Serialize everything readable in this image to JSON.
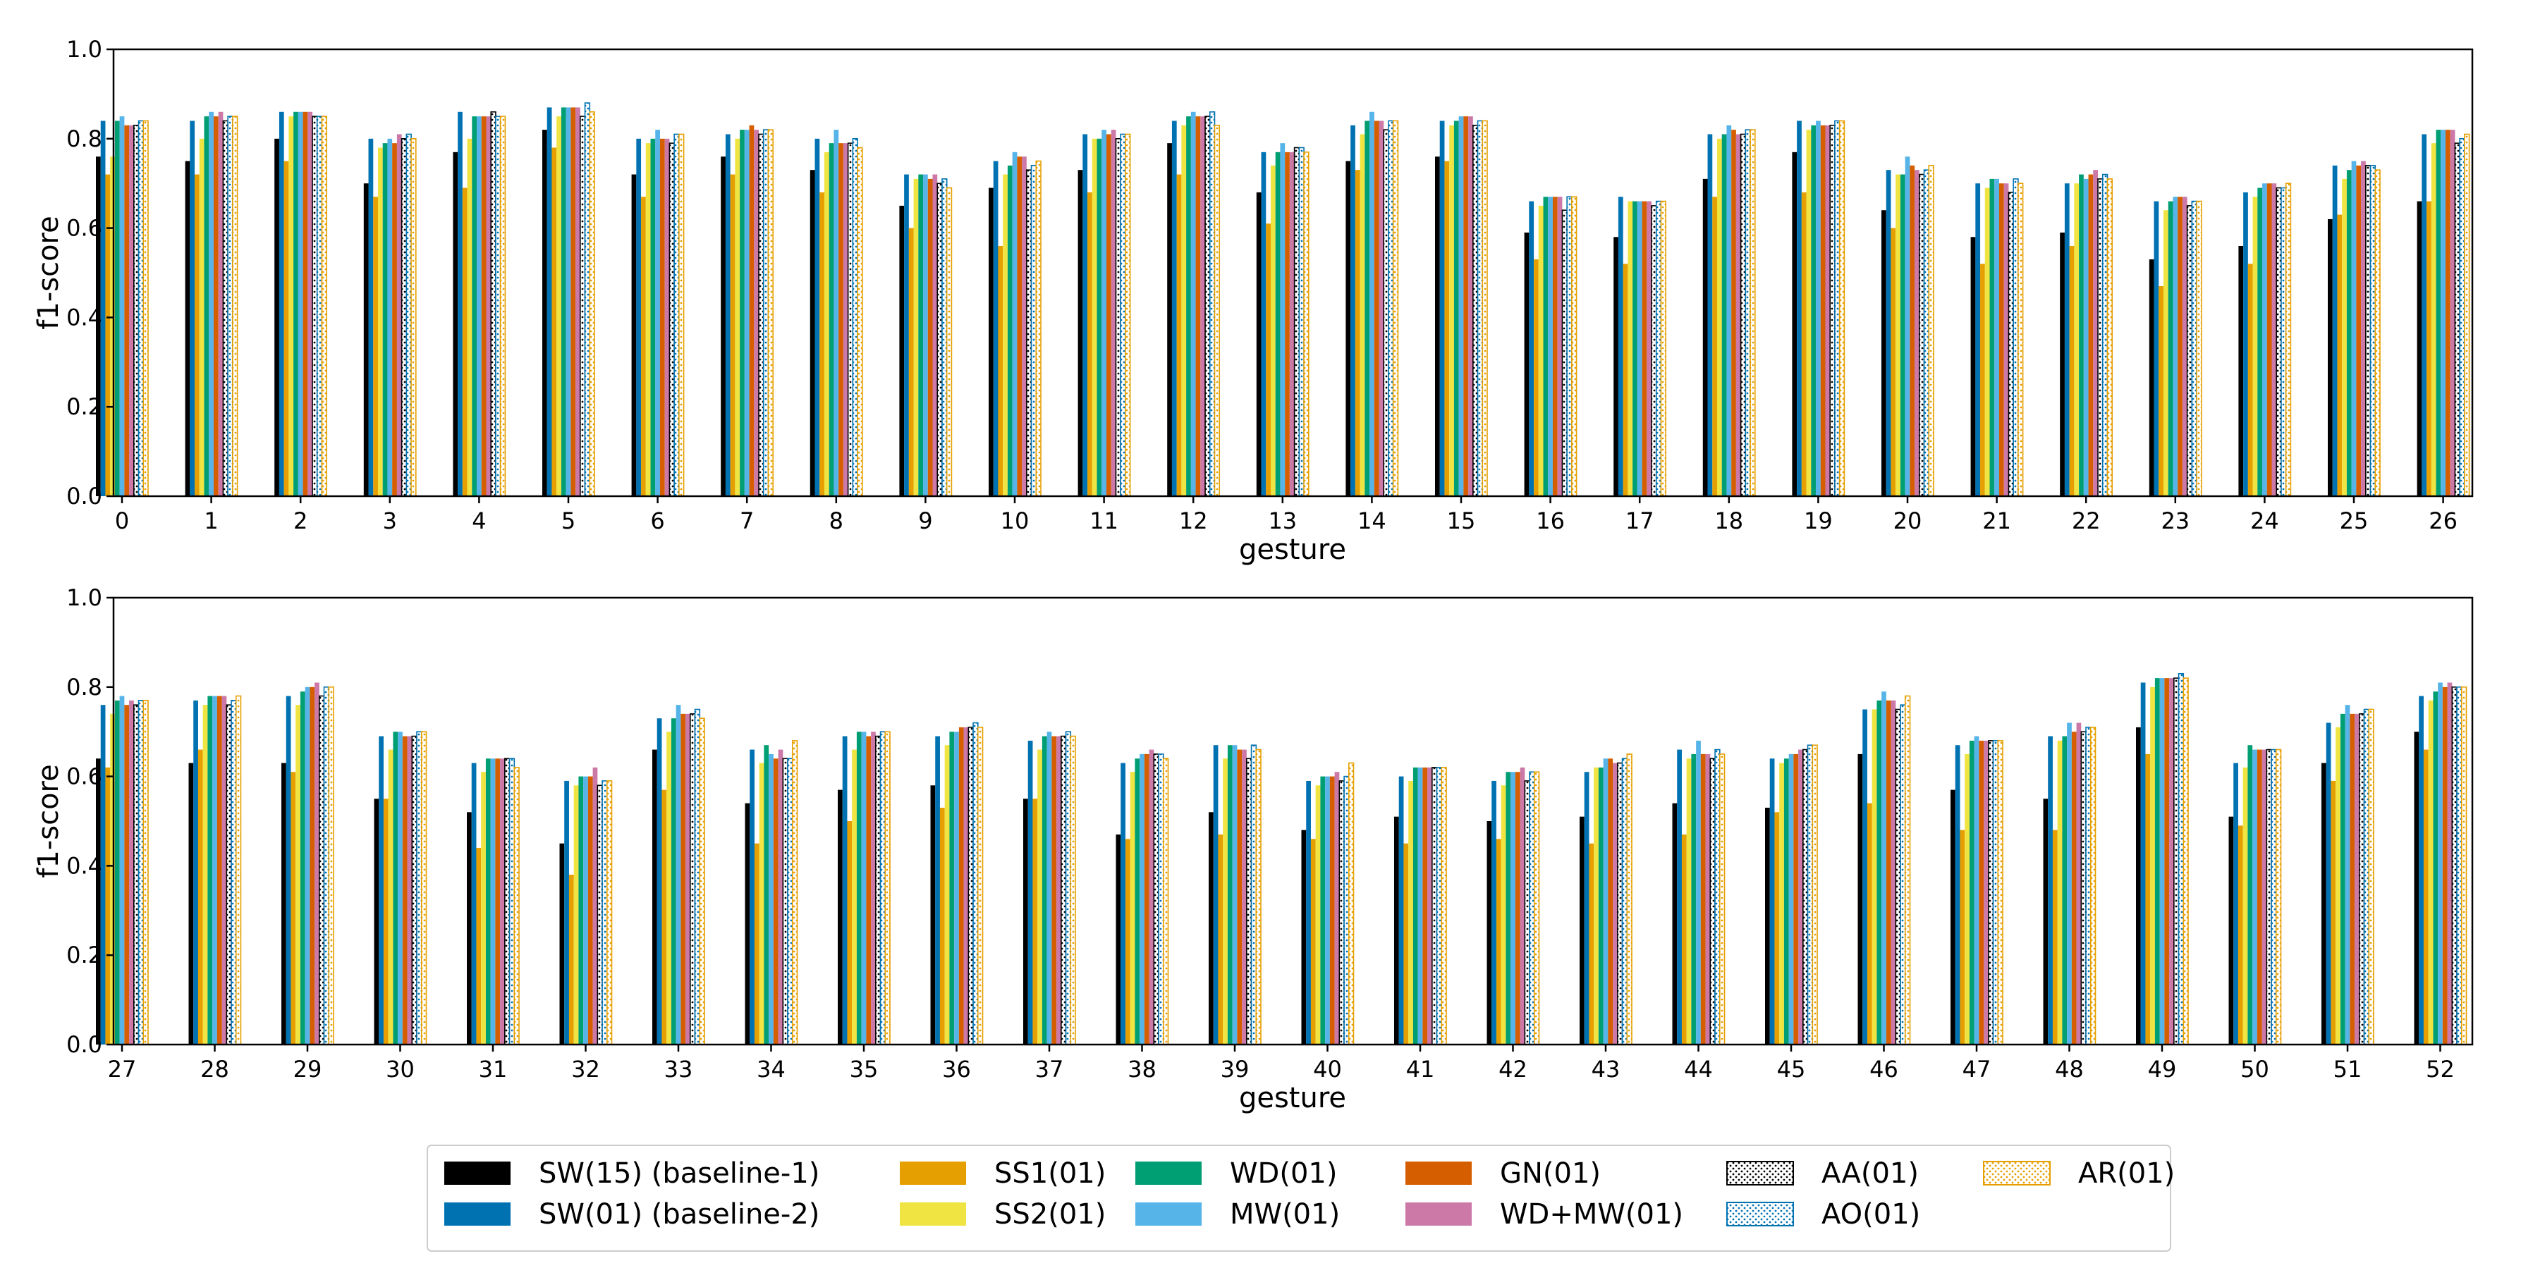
{
  "chart_data": [
    {
      "type": "bar",
      "xlabel": "gesture",
      "ylabel": "f1-score",
      "ylim": [
        0,
        1.0
      ],
      "yticks": [
        "0.0",
        "0.2",
        "0.4",
        "0.6",
        "0.8",
        "1.0"
      ],
      "categories": [
        "0",
        "1",
        "2",
        "3",
        "4",
        "5",
        "6",
        "7",
        "8",
        "9",
        "10",
        "11",
        "12",
        "13",
        "14",
        "15",
        "16",
        "17",
        "18",
        "19",
        "20",
        "21",
        "22",
        "23",
        "24",
        "25",
        "26"
      ],
      "series": [
        {
          "name": "SW(15) (baseline-1)",
          "values": [
            0.76,
            0.75,
            0.8,
            0.7,
            0.77,
            0.82,
            0.72,
            0.76,
            0.73,
            0.65,
            0.69,
            0.73,
            0.79,
            0.68,
            0.75,
            0.76,
            0.59,
            0.58,
            0.71,
            0.77,
            0.64,
            0.58,
            0.59,
            0.53,
            0.56,
            0.62,
            0.66
          ]
        },
        {
          "name": "SW(01) (baseline-2)",
          "values": [
            0.84,
            0.84,
            0.86,
            0.8,
            0.86,
            0.87,
            0.8,
            0.81,
            0.8,
            0.72,
            0.75,
            0.81,
            0.84,
            0.77,
            0.83,
            0.84,
            0.66,
            0.67,
            0.81,
            0.84,
            0.73,
            0.7,
            0.7,
            0.66,
            0.68,
            0.74,
            0.81
          ]
        },
        {
          "name": "SS1(01)",
          "values": [
            0.72,
            0.72,
            0.75,
            0.67,
            0.69,
            0.78,
            0.67,
            0.72,
            0.68,
            0.6,
            0.56,
            0.68,
            0.72,
            0.61,
            0.73,
            0.75,
            0.53,
            0.52,
            0.67,
            0.68,
            0.6,
            0.52,
            0.56,
            0.47,
            0.52,
            0.63,
            0.66
          ]
        },
        {
          "name": "SS2(01)",
          "values": [
            0.76,
            0.8,
            0.85,
            0.78,
            0.8,
            0.85,
            0.79,
            0.8,
            0.77,
            0.71,
            0.72,
            0.8,
            0.83,
            0.74,
            0.81,
            0.83,
            0.65,
            0.66,
            0.8,
            0.82,
            0.72,
            0.69,
            0.7,
            0.64,
            0.67,
            0.71,
            0.79
          ]
        },
        {
          "name": "WD(01)",
          "values": [
            0.84,
            0.85,
            0.86,
            0.79,
            0.85,
            0.87,
            0.8,
            0.82,
            0.79,
            0.72,
            0.74,
            0.8,
            0.85,
            0.77,
            0.84,
            0.84,
            0.67,
            0.66,
            0.81,
            0.83,
            0.72,
            0.71,
            0.72,
            0.66,
            0.69,
            0.73,
            0.82
          ]
        },
        {
          "name": "MW(01)",
          "values": [
            0.85,
            0.86,
            0.86,
            0.8,
            0.85,
            0.87,
            0.82,
            0.82,
            0.82,
            0.72,
            0.77,
            0.82,
            0.86,
            0.79,
            0.86,
            0.85,
            0.67,
            0.66,
            0.83,
            0.84,
            0.76,
            0.71,
            0.71,
            0.67,
            0.7,
            0.75,
            0.82
          ]
        },
        {
          "name": "GN(01)",
          "values": [
            0.83,
            0.85,
            0.86,
            0.79,
            0.85,
            0.87,
            0.8,
            0.83,
            0.79,
            0.71,
            0.76,
            0.81,
            0.85,
            0.77,
            0.84,
            0.85,
            0.67,
            0.66,
            0.82,
            0.83,
            0.74,
            0.7,
            0.72,
            0.67,
            0.7,
            0.74,
            0.82
          ]
        },
        {
          "name": "WD+MW(01)",
          "values": [
            0.83,
            0.86,
            0.86,
            0.81,
            0.85,
            0.87,
            0.8,
            0.82,
            0.79,
            0.72,
            0.76,
            0.82,
            0.85,
            0.77,
            0.84,
            0.85,
            0.67,
            0.66,
            0.81,
            0.83,
            0.73,
            0.7,
            0.73,
            0.67,
            0.7,
            0.75,
            0.82
          ]
        },
        {
          "name": "AA(01)",
          "values": [
            0.83,
            0.84,
            0.85,
            0.8,
            0.86,
            0.85,
            0.79,
            0.81,
            0.79,
            0.7,
            0.73,
            0.8,
            0.85,
            0.78,
            0.82,
            0.83,
            0.64,
            0.65,
            0.81,
            0.83,
            0.72,
            0.68,
            0.71,
            0.65,
            0.69,
            0.74,
            0.79
          ]
        },
        {
          "name": "AO(01)",
          "values": [
            0.84,
            0.85,
            0.85,
            0.81,
            0.85,
            0.88,
            0.81,
            0.82,
            0.8,
            0.71,
            0.74,
            0.81,
            0.86,
            0.78,
            0.84,
            0.84,
            0.67,
            0.66,
            0.82,
            0.84,
            0.73,
            0.71,
            0.72,
            0.66,
            0.69,
            0.74,
            0.8
          ]
        },
        {
          "name": "AR(01)",
          "values": [
            0.84,
            0.85,
            0.85,
            0.8,
            0.85,
            0.86,
            0.81,
            0.82,
            0.78,
            0.69,
            0.75,
            0.81,
            0.83,
            0.77,
            0.84,
            0.84,
            0.67,
            0.66,
            0.82,
            0.84,
            0.74,
            0.7,
            0.71,
            0.66,
            0.7,
            0.73,
            0.81
          ]
        }
      ]
    },
    {
      "type": "bar",
      "xlabel": "gesture",
      "ylabel": "f1-score",
      "ylim": [
        0,
        1.0
      ],
      "yticks": [
        "0.0",
        "0.2",
        "0.4",
        "0.6",
        "0.8",
        "1.0"
      ],
      "categories": [
        "27",
        "28",
        "29",
        "30",
        "31",
        "32",
        "33",
        "34",
        "35",
        "36",
        "37",
        "38",
        "39",
        "40",
        "41",
        "42",
        "43",
        "44",
        "45",
        "46",
        "47",
        "48",
        "49",
        "50",
        "51",
        "52"
      ],
      "series": [
        {
          "name": "SW(15) (baseline-1)",
          "values": [
            0.64,
            0.63,
            0.63,
            0.55,
            0.52,
            0.45,
            0.66,
            0.54,
            0.57,
            0.58,
            0.55,
            0.47,
            0.52,
            0.48,
            0.51,
            0.5,
            0.51,
            0.54,
            0.53,
            0.65,
            0.57,
            0.55,
            0.71,
            0.51,
            0.63,
            0.7
          ]
        },
        {
          "name": "SW(01) (baseline-2)",
          "values": [
            0.76,
            0.77,
            0.78,
            0.69,
            0.63,
            0.59,
            0.73,
            0.66,
            0.69,
            0.69,
            0.68,
            0.63,
            0.67,
            0.59,
            0.6,
            0.59,
            0.61,
            0.66,
            0.64,
            0.75,
            0.67,
            0.69,
            0.81,
            0.63,
            0.72,
            0.78
          ]
        },
        {
          "name": "SS1(01)",
          "values": [
            0.62,
            0.66,
            0.61,
            0.55,
            0.44,
            0.38,
            0.57,
            0.45,
            0.5,
            0.53,
            0.55,
            0.46,
            0.47,
            0.46,
            0.45,
            0.46,
            0.45,
            0.47,
            0.52,
            0.54,
            0.48,
            0.48,
            0.65,
            0.49,
            0.59,
            0.66
          ]
        },
        {
          "name": "SS2(01)",
          "values": [
            0.74,
            0.76,
            0.76,
            0.66,
            0.61,
            0.58,
            0.7,
            0.63,
            0.66,
            0.67,
            0.66,
            0.61,
            0.64,
            0.58,
            0.59,
            0.58,
            0.62,
            0.64,
            0.63,
            0.75,
            0.65,
            0.68,
            0.8,
            0.62,
            0.71,
            0.77
          ]
        },
        {
          "name": "WD(01)",
          "values": [
            0.77,
            0.78,
            0.79,
            0.7,
            0.64,
            0.6,
            0.73,
            0.67,
            0.7,
            0.7,
            0.69,
            0.64,
            0.67,
            0.6,
            0.62,
            0.61,
            0.62,
            0.65,
            0.64,
            0.77,
            0.68,
            0.69,
            0.82,
            0.67,
            0.74,
            0.79
          ]
        },
        {
          "name": "MW(01)",
          "values": [
            0.78,
            0.78,
            0.8,
            0.7,
            0.64,
            0.6,
            0.76,
            0.65,
            0.7,
            0.7,
            0.7,
            0.65,
            0.67,
            0.6,
            0.62,
            0.61,
            0.64,
            0.68,
            0.65,
            0.79,
            0.69,
            0.72,
            0.82,
            0.66,
            0.76,
            0.81
          ]
        },
        {
          "name": "GN(01)",
          "values": [
            0.76,
            0.78,
            0.8,
            0.69,
            0.64,
            0.6,
            0.74,
            0.64,
            0.69,
            0.71,
            0.69,
            0.65,
            0.66,
            0.6,
            0.62,
            0.61,
            0.64,
            0.65,
            0.65,
            0.77,
            0.68,
            0.7,
            0.82,
            0.66,
            0.74,
            0.8
          ]
        },
        {
          "name": "WD+MW(01)",
          "values": [
            0.77,
            0.78,
            0.81,
            0.69,
            0.64,
            0.62,
            0.74,
            0.66,
            0.7,
            0.71,
            0.69,
            0.66,
            0.66,
            0.61,
            0.62,
            0.62,
            0.63,
            0.65,
            0.66,
            0.77,
            0.68,
            0.72,
            0.82,
            0.66,
            0.74,
            0.81
          ]
        },
        {
          "name": "AA(01)",
          "values": [
            0.76,
            0.76,
            0.78,
            0.69,
            0.64,
            0.58,
            0.74,
            0.64,
            0.69,
            0.71,
            0.69,
            0.65,
            0.64,
            0.59,
            0.62,
            0.59,
            0.63,
            0.64,
            0.66,
            0.75,
            0.68,
            0.7,
            0.82,
            0.66,
            0.74,
            0.8
          ]
        },
        {
          "name": "AO(01)",
          "values": [
            0.77,
            0.77,
            0.8,
            0.7,
            0.64,
            0.59,
            0.75,
            0.64,
            0.7,
            0.72,
            0.7,
            0.65,
            0.67,
            0.6,
            0.62,
            0.61,
            0.64,
            0.66,
            0.67,
            0.76,
            0.68,
            0.71,
            0.83,
            0.66,
            0.75,
            0.8
          ]
        },
        {
          "name": "AR(01)",
          "values": [
            0.77,
            0.78,
            0.8,
            0.7,
            0.62,
            0.59,
            0.73,
            0.68,
            0.7,
            0.71,
            0.69,
            0.64,
            0.66,
            0.63,
            0.62,
            0.61,
            0.65,
            0.65,
            0.67,
            0.78,
            0.68,
            0.71,
            0.82,
            0.66,
            0.75,
            0.8
          ]
        }
      ]
    }
  ],
  "legend": {
    "placement": "bottom-center",
    "entries": [
      {
        "label": "SW(15) (baseline-1)",
        "color": "#000000",
        "style": "solid"
      },
      {
        "label": "SW(01) (baseline-2)",
        "color": "#0072b2",
        "style": "solid"
      },
      {
        "label": "SS1(01)",
        "color": "#e69f00",
        "style": "solid"
      },
      {
        "label": "SS2(01)",
        "color": "#f0e442",
        "style": "solid"
      },
      {
        "label": "WD(01)",
        "color": "#009e73",
        "style": "solid"
      },
      {
        "label": "MW(01)",
        "color": "#56b4e9",
        "style": "solid"
      },
      {
        "label": "GN(01)",
        "color": "#d55e00",
        "style": "solid"
      },
      {
        "label": "WD+MW(01)",
        "color": "#cc79a7",
        "style": "solid"
      },
      {
        "label": "AA(01)",
        "color": "#000000",
        "style": "dotted-hatch"
      },
      {
        "label": "AO(01)",
        "color": "#0072b2",
        "style": "dotted-hatch"
      },
      {
        "label": "AR(01)",
        "color": "#e69f00",
        "style": "dotted-hatch"
      }
    ]
  }
}
